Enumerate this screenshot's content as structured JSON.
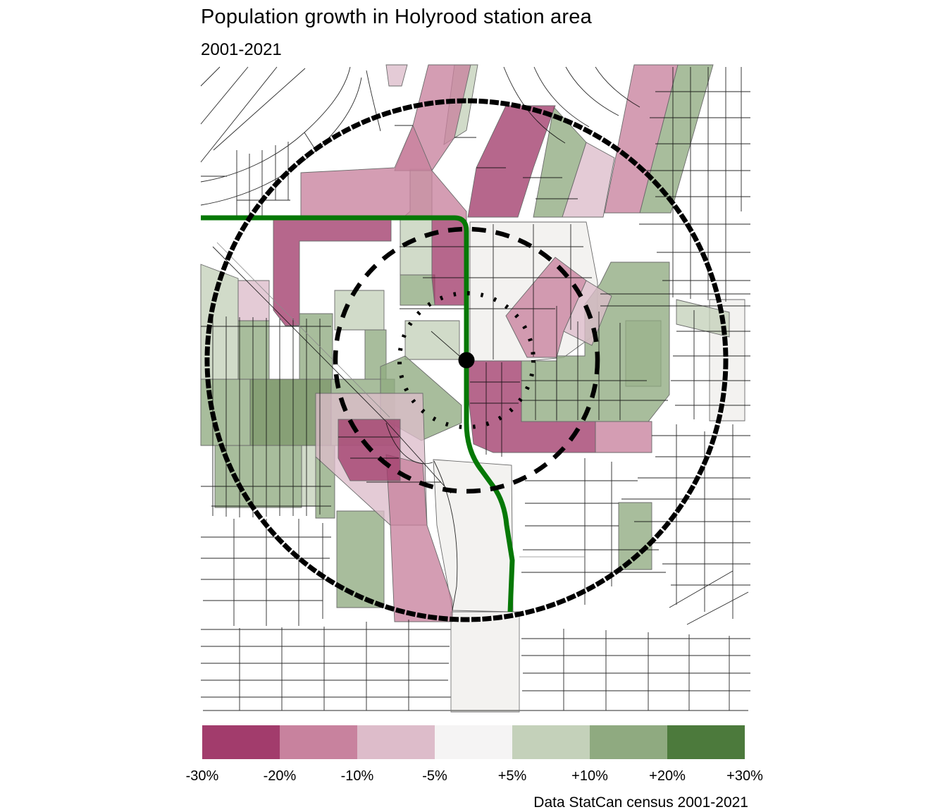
{
  "header": {
    "title": "Population growth in Holyrood station area",
    "subtitle": "2001-2021"
  },
  "legend": {
    "stops": [
      {
        "range": "-30% to -20%",
        "color": "#a23c6c"
      },
      {
        "range": "-20% to -10%",
        "color": "#c8829e"
      },
      {
        "range": "-10% to -5%",
        "color": "#ddbcca"
      },
      {
        "range": "-5% to +5%",
        "color": "#f5f4f4"
      },
      {
        "range": "+5% to +10%",
        "color": "#c4d1ba"
      },
      {
        "range": "+10% to +20%",
        "color": "#8faa80"
      },
      {
        "range": "+20% to +30%",
        "color": "#4c7a3c"
      }
    ],
    "tick_labels": [
      "-30%",
      "-20%",
      "-10%",
      "-5%",
      "+5%",
      "+10%",
      "+20%",
      "+30%"
    ]
  },
  "caption": "Data StatCan census 2001-2021",
  "map": {
    "accent_colors": {
      "lrt_line": "#067806",
      "rings_and_station": "#000000",
      "streets": "#111111"
    }
  },
  "chart_data": {
    "type": "choropleth",
    "title": "Population growth in Holyrood station area",
    "subtitle": "2001-2021",
    "legend_breaks_percent": [
      -30,
      -20,
      -10,
      -5,
      5,
      10,
      20,
      30
    ],
    "legend_colors": [
      "#a23c6c",
      "#c8829e",
      "#ddbcca",
      "#f5f4f4",
      "#c4d1ba",
      "#8faa80",
      "#4c7a3c"
    ],
    "source": "Data StatCan census 2001-2021"
  }
}
